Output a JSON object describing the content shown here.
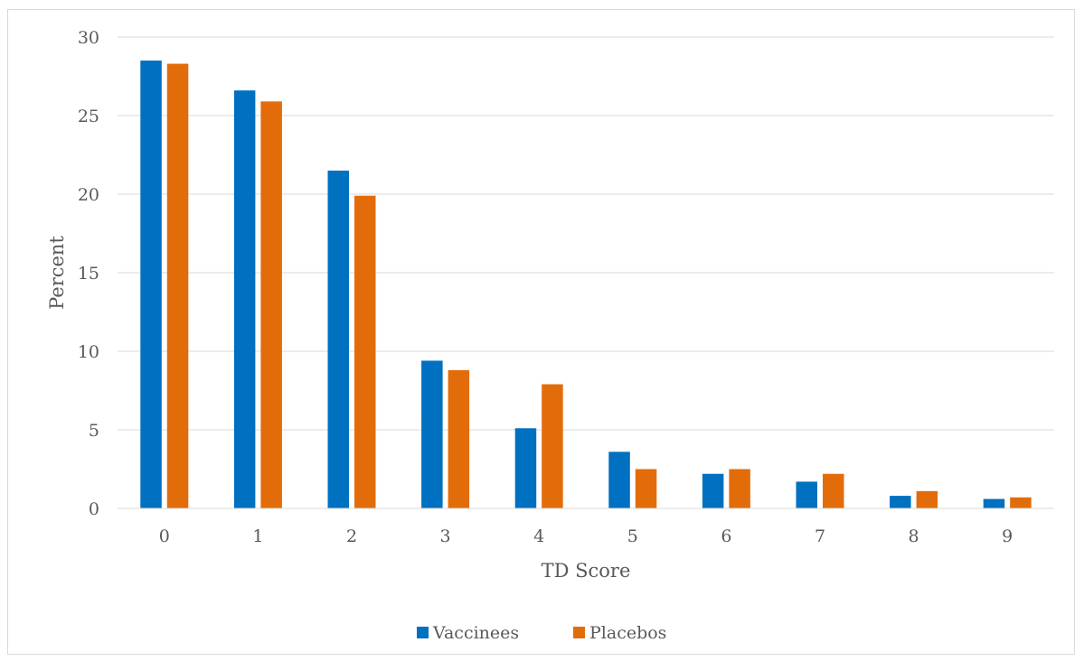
{
  "chart_data": {
    "type": "bar",
    "title": "",
    "xlabel": "TD Score",
    "ylabel": "Percent",
    "categories": [
      "0",
      "1",
      "2",
      "3",
      "4",
      "5",
      "6",
      "7",
      "8",
      "9"
    ],
    "ylim": [
      0,
      30
    ],
    "yticks": [
      "0",
      "5",
      "10",
      "15",
      "20",
      "25",
      "30"
    ],
    "grid": true,
    "legend_position": "bottom",
    "series": [
      {
        "name": "Vaccinees",
        "color": "#0070C0",
        "values": [
          28.5,
          26.6,
          21.5,
          9.4,
          5.1,
          3.6,
          2.2,
          1.7,
          0.8,
          0.6
        ]
      },
      {
        "name": "Placebos",
        "color": "#E36C0A",
        "values": [
          28.3,
          25.9,
          19.9,
          8.8,
          7.9,
          2.5,
          2.5,
          2.2,
          1.1,
          0.7
        ]
      }
    ]
  }
}
